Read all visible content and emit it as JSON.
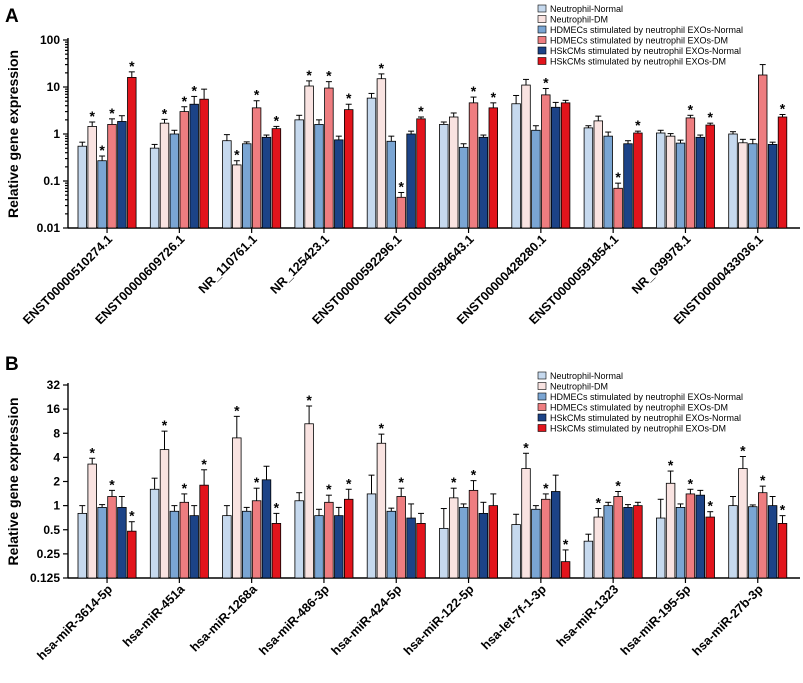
{
  "series_colors": [
    "#c6d9ee",
    "#f9e3e1",
    "#7aa5d3",
    "#ee7d80",
    "#1c4387",
    "#e2141c"
  ],
  "chart_data": [
    {
      "panel": "A",
      "type": "bar",
      "title": "",
      "ylabel": "Relative gene expression",
      "yscale": "log10",
      "ylim": [
        0.01,
        100
      ],
      "yticks": [
        0.01,
        0.1,
        1,
        10,
        100
      ],
      "ytick_labels": [
        "0.01",
        "0.1",
        "1",
        "10",
        "100"
      ],
      "legend": [
        "Neutrophil-Normal",
        "Neutrophil-DM",
        "HDMECs stimulated by neutrophil EXOs-Normal",
        "HDMECs stimulated by neutrophil EXOs-DM",
        "HSkCMs stimulated by neutrophil EXOs-Normal",
        "HSkCMs stimulated by neutrophil EXOs-DM"
      ],
      "categories": [
        "ENST00000510274.1",
        "ENST00000609726.1",
        "NR_110761.1",
        "NR_125423.1",
        "ENST00000592296.1",
        "ENST00000584643.1",
        "ENST00000428280.1",
        "ENST00000591854.1",
        "NR_039978.1",
        "ENST00000433036.1"
      ],
      "values": [
        [
          0.55,
          1.45,
          0.27,
          1.6,
          1.85,
          16
        ],
        [
          0.5,
          1.7,
          1.0,
          3.0,
          4.3,
          5.5
        ],
        [
          0.72,
          0.22,
          0.62,
          3.6,
          0.85,
          1.3
        ],
        [
          2.0,
          10.5,
          1.6,
          9.5,
          0.75,
          3.3
        ],
        [
          5.8,
          15,
          0.7,
          0.045,
          1.0,
          2.1
        ],
        [
          1.6,
          2.3,
          0.52,
          4.6,
          0.85,
          3.6
        ],
        [
          4.4,
          11,
          1.2,
          6.8,
          3.7,
          4.6
        ],
        [
          1.35,
          1.9,
          0.9,
          0.07,
          0.62,
          1.05
        ],
        [
          1.05,
          0.9,
          0.64,
          2.2,
          0.85,
          1.55
        ],
        [
          1.0,
          0.65,
          0.62,
          18,
          0.6,
          2.3
        ]
      ],
      "errors": [
        [
          0.12,
          0.35,
          0.07,
          0.5,
          0.6,
          5
        ],
        [
          0.1,
          0.35,
          0.2,
          0.8,
          2.0,
          3.5
        ],
        [
          0.25,
          0.05,
          0.06,
          1.5,
          0.1,
          0.15
        ],
        [
          0.5,
          3.0,
          0.4,
          3.5,
          0.15,
          1.0
        ],
        [
          1.5,
          4.0,
          0.2,
          0.012,
          0.15,
          0.2
        ],
        [
          0.2,
          0.5,
          0.1,
          1.5,
          0.1,
          1.0
        ],
        [
          2.2,
          3.5,
          0.3,
          2.5,
          1.0,
          0.6
        ],
        [
          0.15,
          0.5,
          0.2,
          0.02,
          0.1,
          0.1
        ],
        [
          0.15,
          0.12,
          0.1,
          0.3,
          0.1,
          0.15
        ],
        [
          0.12,
          0.12,
          0.15,
          12,
          0.07,
          0.3
        ]
      ],
      "significant": [
        [
          false,
          true,
          true,
          true,
          false,
          true
        ],
        [
          false,
          true,
          false,
          true,
          true,
          false
        ],
        [
          false,
          true,
          false,
          true,
          false,
          true
        ],
        [
          false,
          true,
          false,
          true,
          false,
          true
        ],
        [
          false,
          true,
          false,
          true,
          false,
          true
        ],
        [
          false,
          false,
          false,
          true,
          false,
          true
        ],
        [
          false,
          false,
          false,
          true,
          false,
          false
        ],
        [
          false,
          false,
          false,
          true,
          false,
          true
        ],
        [
          false,
          false,
          false,
          true,
          false,
          true
        ],
        [
          false,
          false,
          false,
          false,
          false,
          true
        ]
      ]
    },
    {
      "panel": "B",
      "type": "bar",
      "title": "",
      "ylabel": "Relative gene expression",
      "yscale": "log2",
      "ylim": [
        0.125,
        32
      ],
      "yticks": [
        0.125,
        0.25,
        0.5,
        1,
        2,
        4,
        8,
        16,
        32
      ],
      "ytick_labels": [
        "0.125",
        "0.25",
        "0.5",
        "1",
        "2",
        "4",
        "8",
        "16",
        "32"
      ],
      "legend": [
        "Neutrophil-Normal",
        "Neutrophil-DM",
        "HDMECs stimulated by neutrophil EXOs-Normal",
        "HDMECs stimulated by neutrophil EXOs-DM",
        "HSkCMs stimulated by neutrophil EXOs-Normal",
        "HSkCMs stimulated by neutrophil EXOs-DM"
      ],
      "categories": [
        "hsa-miR-3614-5p",
        "hsa-miR-451a",
        "hsa-miR-1268a",
        "hsa-miR-486-3p",
        "hsa-miR-424-5p",
        "hsa-miR-122-5p",
        "hsa-let-7f-1-3p",
        "hsa-miR-1323",
        "hsa-miR-195-5p",
        "hsa-miR-27b-3p"
      ],
      "values": [
        [
          0.8,
          3.3,
          0.95,
          1.3,
          0.95,
          0.48
        ],
        [
          1.6,
          5.0,
          0.85,
          1.1,
          0.75,
          1.8
        ],
        [
          0.75,
          7.0,
          0.85,
          1.15,
          2.1,
          0.6
        ],
        [
          1.15,
          10.5,
          0.75,
          1.1,
          0.75,
          1.2
        ],
        [
          1.4,
          6.0,
          0.85,
          1.3,
          0.7,
          0.6
        ],
        [
          0.52,
          1.25,
          0.95,
          1.55,
          0.8,
          1.0
        ],
        [
          0.58,
          2.9,
          0.9,
          1.2,
          1.5,
          0.2
        ],
        [
          0.36,
          0.72,
          1.0,
          1.3,
          0.95,
          1.0
        ],
        [
          0.7,
          1.9,
          0.95,
          1.4,
          1.35,
          0.72
        ],
        [
          1.0,
          2.9,
          0.97,
          1.45,
          1.0,
          0.6
        ]
      ],
      "errors": [
        [
          0.2,
          0.6,
          0.08,
          0.25,
          0.35,
          0.15
        ],
        [
          0.6,
          3.5,
          0.15,
          0.3,
          0.25,
          1.0
        ],
        [
          0.25,
          6.0,
          0.1,
          0.5,
          1.0,
          0.2
        ],
        [
          0.3,
          7.0,
          0.15,
          0.25,
          0.2,
          0.4
        ],
        [
          1.0,
          1.8,
          0.08,
          0.35,
          0.35,
          0.2
        ],
        [
          0.4,
          0.4,
          0.1,
          0.5,
          0.3,
          0.4
        ],
        [
          0.2,
          1.6,
          0.1,
          0.2,
          0.9,
          0.08
        ],
        [
          0.08,
          0.2,
          0.1,
          0.2,
          0.08,
          0.1
        ],
        [
          0.5,
          0.8,
          0.1,
          0.2,
          0.2,
          0.12
        ],
        [
          0.3,
          1.2,
          0.05,
          0.3,
          0.3,
          0.15
        ]
      ],
      "significant": [
        [
          false,
          true,
          false,
          true,
          false,
          true
        ],
        [
          false,
          true,
          false,
          true,
          false,
          true
        ],
        [
          false,
          true,
          false,
          true,
          false,
          true
        ],
        [
          false,
          true,
          false,
          true,
          false,
          true
        ],
        [
          false,
          true,
          false,
          true,
          false,
          false
        ],
        [
          false,
          true,
          false,
          true,
          false,
          false
        ],
        [
          false,
          true,
          false,
          true,
          false,
          true
        ],
        [
          false,
          true,
          false,
          true,
          false,
          false
        ],
        [
          false,
          true,
          false,
          true,
          false,
          true
        ],
        [
          false,
          true,
          false,
          true,
          false,
          true
        ]
      ]
    }
  ]
}
